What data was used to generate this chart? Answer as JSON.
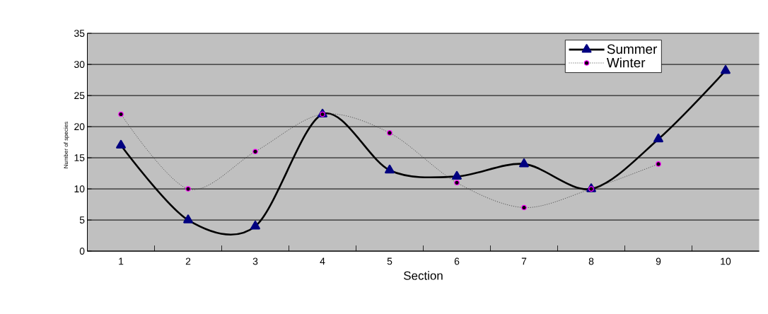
{
  "chart_data": {
    "type": "line",
    "xlabel": "Section",
    "ylabel": "Number of species",
    "categories": [
      "1",
      "2",
      "3",
      "4",
      "5",
      "6",
      "7",
      "8",
      "9",
      "10"
    ],
    "series": [
      {
        "name": "Summer",
        "color": "#000000",
        "marker": "triangle",
        "line_style": "solid",
        "values": [
          17,
          5,
          4,
          22,
          13,
          12,
          14,
          10,
          18,
          29
        ]
      },
      {
        "name": "Winter",
        "color": "#404040",
        "marker": "circle",
        "line_style": "dotted",
        "values": [
          22,
          10,
          16,
          22,
          19,
          11,
          7,
          10,
          14,
          null
        ]
      }
    ],
    "ylim": [
      0,
      35
    ],
    "yticks": [
      0,
      5,
      10,
      15,
      20,
      25,
      30,
      35
    ],
    "grid": "y",
    "legend": "top right"
  }
}
